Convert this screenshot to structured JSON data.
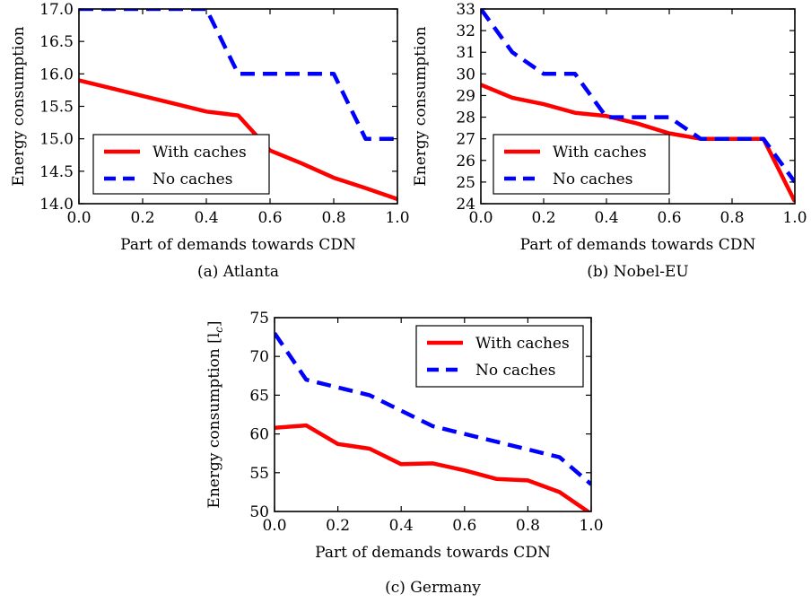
{
  "chart_data": [
    {
      "type": "line",
      "caption": "(a) Atlanta",
      "xlabel": "Part of demands towards CDN",
      "ylabel": "Energy consumption",
      "xlim": [
        0.0,
        1.0
      ],
      "ylim": [
        14.0,
        17.0
      ],
      "xticks": [
        "0.0",
        "0.2",
        "0.4",
        "0.6",
        "0.8",
        "1.0"
      ],
      "yticks": [
        "14.0",
        "14.5",
        "15.0",
        "15.5",
        "16.0",
        "16.5",
        "17.0"
      ],
      "grid": false,
      "legend": "lower-left",
      "series": [
        {
          "name": "With caches",
          "style": "solid",
          "color": "#ff0000",
          "x": [
            0.0,
            0.1,
            0.2,
            0.3,
            0.4,
            0.5,
            0.6,
            0.7,
            0.8,
            0.9,
            1.0
          ],
          "y": [
            15.9,
            15.78,
            15.66,
            15.54,
            15.42,
            15.36,
            14.82,
            14.62,
            14.4,
            14.24,
            14.07
          ]
        },
        {
          "name": "No caches",
          "style": "dashed",
          "color": "#0000ff",
          "x": [
            0.0,
            0.1,
            0.2,
            0.3,
            0.4,
            0.5,
            0.6,
            0.7,
            0.8,
            0.9,
            1.0
          ],
          "y": [
            17.0,
            17.0,
            17.0,
            17.0,
            17.0,
            16.0,
            16.0,
            16.0,
            16.0,
            15.0,
            15.0
          ]
        }
      ]
    },
    {
      "type": "line",
      "caption": "(b) Nobel-EU",
      "xlabel": "Part of demands towards CDN",
      "ylabel": "Energy consumption",
      "xlim": [
        0.0,
        1.0
      ],
      "ylim": [
        24,
        33
      ],
      "xticks": [
        "0.0",
        "0.2",
        "0.4",
        "0.6",
        "0.8",
        "1.0"
      ],
      "yticks": [
        "24",
        "25",
        "26",
        "27",
        "28",
        "29",
        "30",
        "31",
        "32",
        "33"
      ],
      "grid": false,
      "legend": "lower-left",
      "series": [
        {
          "name": "With caches",
          "style": "solid",
          "color": "#ff0000",
          "x": [
            0.0,
            0.1,
            0.2,
            0.3,
            0.4,
            0.5,
            0.6,
            0.7,
            0.8,
            0.9,
            1.0
          ],
          "y": [
            29.5,
            28.9,
            28.6,
            28.2,
            28.05,
            27.7,
            27.25,
            27.0,
            27.0,
            27.0,
            24.1
          ]
        },
        {
          "name": "No caches",
          "style": "dashed",
          "color": "#0000ff",
          "x": [
            0.0,
            0.1,
            0.2,
            0.3,
            0.4,
            0.5,
            0.6,
            0.7,
            0.8,
            0.9,
            1.0
          ],
          "y": [
            33.0,
            31.0,
            30.0,
            30.0,
            28.0,
            28.0,
            28.0,
            27.0,
            27.0,
            27.0,
            25.0
          ]
        }
      ]
    },
    {
      "type": "line",
      "caption": "(c) Germany",
      "xlabel": "Part of demands towards CDN",
      "ylabel": "Energy consumption [l",
      "ylabel_sub": "c",
      "ylabel_end": "]",
      "xlim": [
        0.0,
        1.0
      ],
      "ylim": [
        50,
        75
      ],
      "xticks": [
        "0.0",
        "0.2",
        "0.4",
        "0.6",
        "0.8",
        "1.0"
      ],
      "yticks": [
        "50",
        "55",
        "60",
        "65",
        "70",
        "75"
      ],
      "grid": false,
      "legend": "top-right",
      "series": [
        {
          "name": "With caches",
          "style": "solid",
          "color": "#ff0000",
          "x": [
            0.0,
            0.1,
            0.2,
            0.3,
            0.4,
            0.5,
            0.6,
            0.7,
            0.8,
            0.9,
            1.0
          ],
          "y": [
            60.8,
            61.1,
            58.7,
            58.1,
            56.1,
            56.2,
            55.3,
            54.2,
            54.0,
            52.5,
            49.7
          ]
        },
        {
          "name": "No caches",
          "style": "dashed",
          "color": "#0000ff",
          "x": [
            0.0,
            0.1,
            0.2,
            0.3,
            0.4,
            0.5,
            0.6,
            0.7,
            0.8,
            0.9,
            1.0
          ],
          "y": [
            73.0,
            67.0,
            66.0,
            65.0,
            63.0,
            61.0,
            60.0,
            59.0,
            58.0,
            57.0,
            53.5
          ]
        }
      ]
    }
  ]
}
